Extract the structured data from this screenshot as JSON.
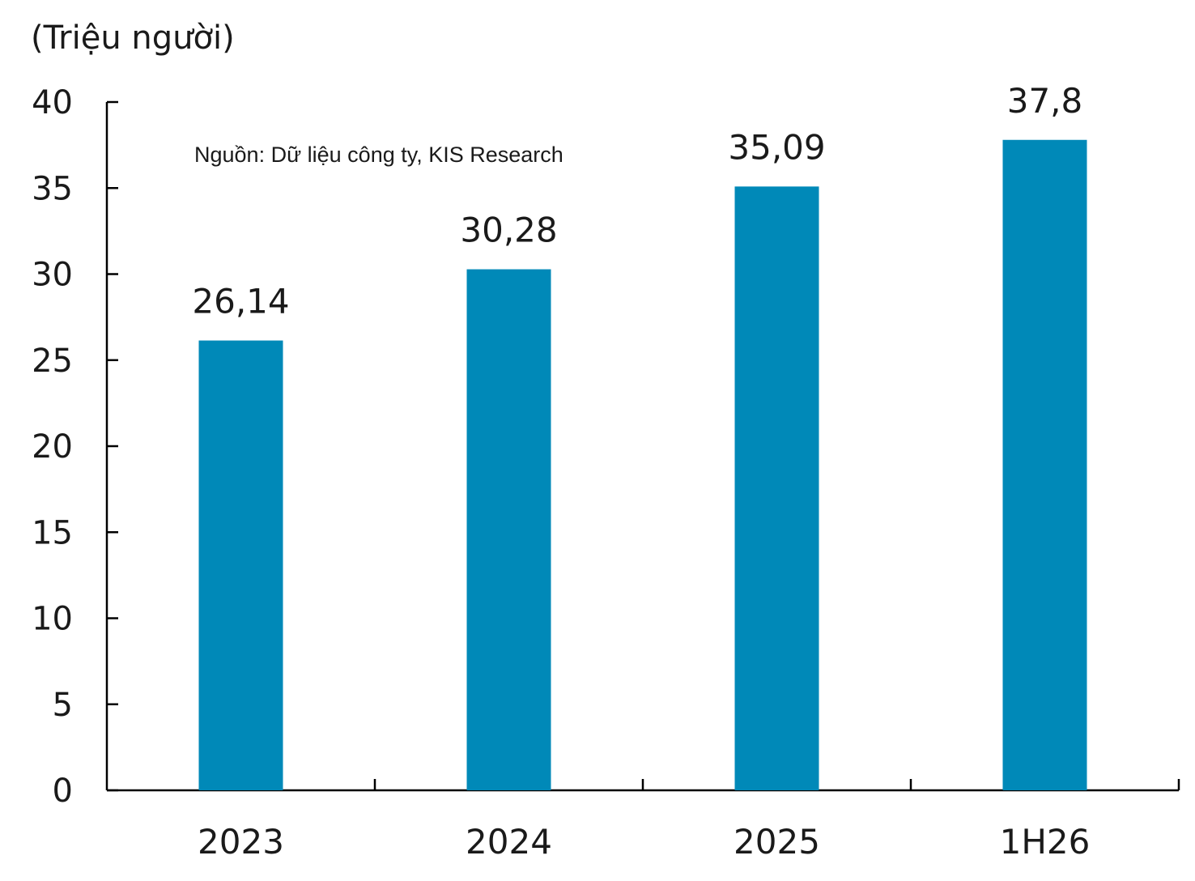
{
  "chart_data": {
    "type": "bar",
    "unit_label": "(Triệu người)",
    "note": "Nguồn: Dữ liệu công ty, KIS Research",
    "categories": [
      "2023",
      "2024",
      "2025",
      "1H26"
    ],
    "values": [
      26.14,
      30.28,
      35.09,
      37.8
    ],
    "value_labels": [
      "26,14",
      "30,28",
      "35,09",
      "37,8"
    ],
    "yticks": [
      0,
      5,
      10,
      15,
      20,
      25,
      30,
      35,
      40
    ],
    "ylim": [
      0,
      40
    ],
    "grid": false,
    "legend": "none",
    "bar_color": "#0089b8",
    "axis_color": "#000000"
  }
}
